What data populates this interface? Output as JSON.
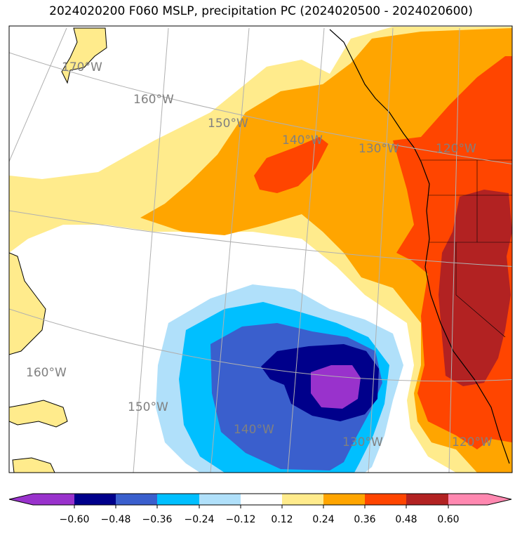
{
  "title": "2024020200 F060 MSLP, precipitation PC (2024020500 - 2024020600)",
  "colors": {
    "levels": [
      "#9932cc",
      "#00008b",
      "#3a5fcd",
      "#00bfff",
      "#b0e0fa",
      "#ffffff",
      "#ffeb8c",
      "#ffa500",
      "#ff4500",
      "#b22222",
      "#ff88b0"
    ],
    "land_fill": "#ffeb8c",
    "gridline": "#b0b0b0",
    "label": "#808080"
  },
  "longitude_labels": [
    "170°W",
    "160°W",
    "150°W",
    "140°W",
    "130°W",
    "120°W",
    "160°W",
    "150°W",
    "140°W",
    "130°W",
    "120°W"
  ],
  "colorbar": {
    "ticks": [
      "−0.60",
      "−0.48",
      "−0.36",
      "−0.24",
      "−0.12",
      "0.12",
      "0.24",
      "0.36",
      "0.48",
      "0.60"
    ],
    "extend": "both"
  }
}
